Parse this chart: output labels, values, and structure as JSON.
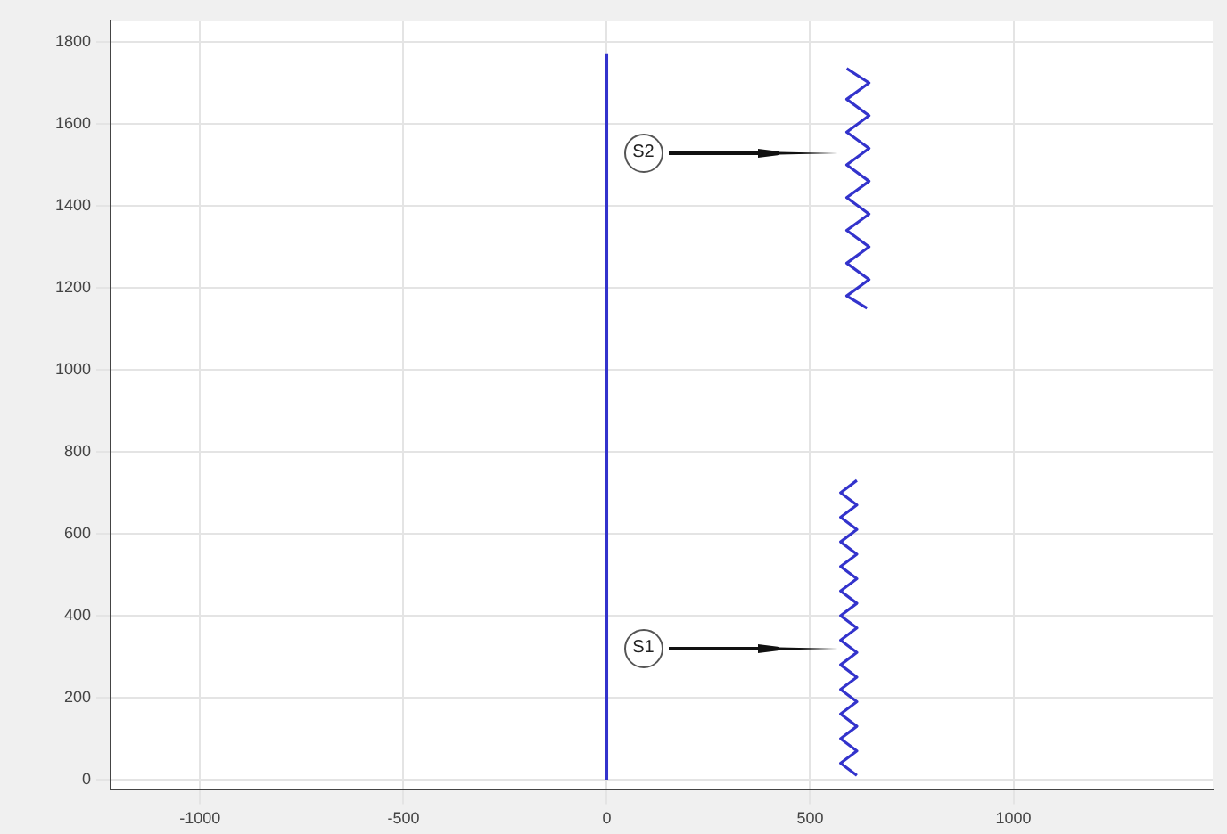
{
  "chart_data": {
    "type": "line",
    "xlim": [
      -1220,
      1490
    ],
    "ylim": [
      -25,
      1850
    ],
    "xticks": [
      -1000,
      -500,
      0,
      500,
      1000
    ],
    "yticks": [
      0,
      200,
      400,
      600,
      800,
      1000,
      1200,
      1400,
      1600,
      1800
    ],
    "grid": true,
    "legend": false,
    "marker": "none",
    "line_style": "solid",
    "series": [
      {
        "color": "#3333cc",
        "x": [
          0,
          0
        ],
        "values": [
          0,
          1770
        ]
      },
      {
        "color": "#3333cc",
        "x": [
          590,
          645,
          590,
          645,
          590,
          645,
          590,
          645,
          590,
          645,
          590,
          645,
          590,
          645,
          590,
          640
        ],
        "values": [
          1735,
          1700,
          1660,
          1620,
          1580,
          1540,
          1500,
          1460,
          1420,
          1380,
          1340,
          1300,
          1260,
          1220,
          1180,
          1150
        ]
      },
      {
        "color": "#3333cc",
        "x": [
          615,
          575,
          615,
          575,
          615,
          575,
          615,
          575,
          615,
          575,
          615,
          575,
          615,
          575,
          615,
          575,
          615,
          575,
          615,
          575,
          615,
          575,
          615,
          575,
          615
        ],
        "values": [
          730,
          700,
          670,
          640,
          610,
          580,
          550,
          520,
          490,
          460,
          430,
          400,
          370,
          340,
          310,
          280,
          250,
          220,
          190,
          160,
          130,
          100,
          70,
          40,
          10
        ]
      }
    ],
    "annotations": [
      {
        "text": "S2",
        "x": 90,
        "y": 1530
      },
      {
        "text": "S1",
        "x": 90,
        "y": 320
      }
    ]
  }
}
